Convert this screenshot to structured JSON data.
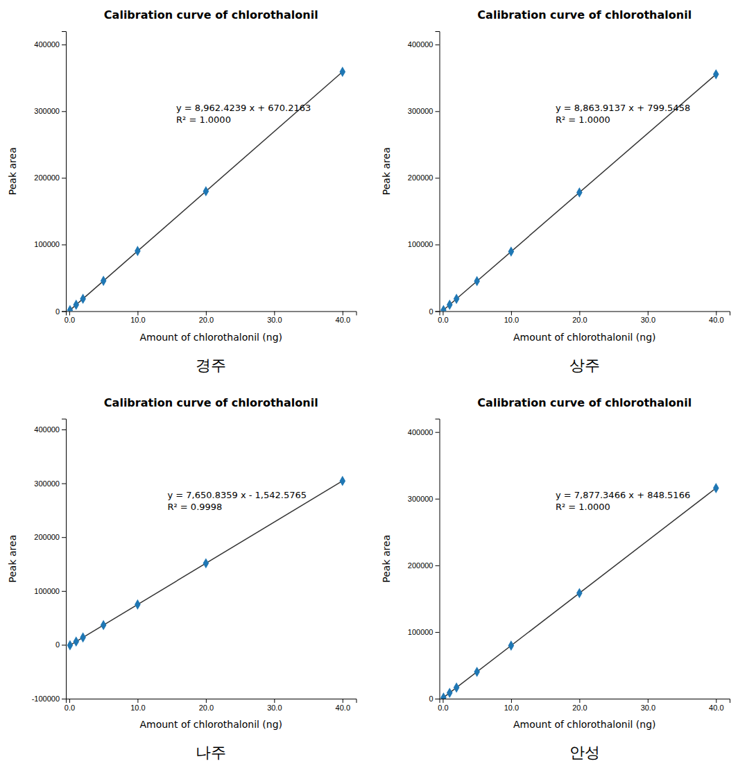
{
  "chart_data": [
    {
      "type": "scatter",
      "title": "Calibration curve of chlorothalonil",
      "subtitle": "경주",
      "xlabel": "Amount of chlorothalonil (ng)",
      "ylabel": "Peak area",
      "annotations": [
        "y = 8,962.4239  x + 670.2163",
        "R² = 1.0000"
      ],
      "xlim": [
        -0.5,
        42
      ],
      "ylim": [
        0,
        420000
      ],
      "xticks": [
        {
          "value": 0.0,
          "label": "0.0"
        },
        {
          "value": 10.0,
          "label": "10.0"
        },
        {
          "value": 20.0,
          "label": "20.0"
        },
        {
          "value": 30.0,
          "label": "30.0"
        },
        {
          "value": 40.0,
          "label": "40.0"
        }
      ],
      "yticks": [
        0,
        100000,
        200000,
        300000,
        400000
      ],
      "grid": false,
      "series": [
        {
          "type": "line",
          "x": [
            0,
            40
          ],
          "values": [
            670.2163,
            359167.1723
          ]
        },
        {
          "type": "scatter",
          "marker": "diamond",
          "x": [
            0.1,
            1.0,
            2.0,
            5.0,
            10.0,
            20.0,
            40.0
          ],
          "values": [
            1566.45869,
            9632.6402,
            18595.0641,
            45482.3358,
            90294.4553,
            179918.6943,
            359167.1723
          ]
        }
      ]
    },
    {
      "type": "scatter",
      "title": "Calibration curve of chlorothalonil",
      "subtitle": "상주",
      "xlabel": "Amount of chlorothalonil (ng)",
      "ylabel": "Peak area",
      "annotations": [
        "y = 8,863.9137  x + 799.5458",
        "R² = 1.0000"
      ],
      "xlim": [
        -0.5,
        42
      ],
      "ylim": [
        0,
        420000
      ],
      "xticks": [
        {
          "value": 0.0,
          "label": "0.0"
        },
        {
          "value": 10.0,
          "label": "10.0"
        },
        {
          "value": 20.0,
          "label": "20.0"
        },
        {
          "value": 30.0,
          "label": "30.0"
        },
        {
          "value": 40.0,
          "label": "40.0"
        }
      ],
      "yticks": [
        0,
        100000,
        200000,
        300000,
        400000
      ],
      "grid": false,
      "series": [
        {
          "type": "line",
          "x": [
            0,
            40
          ],
          "values": [
            799.5458,
            355356.0938
          ]
        },
        {
          "type": "scatter",
          "marker": "diamond",
          "x": [
            0.1,
            1.0,
            2.0,
            5.0,
            10.0,
            20.0,
            40.0
          ],
          "values": [
            1685.93717,
            9663.4595,
            18527.3732,
            45119.1143,
            89438.6828,
            178077.8198,
            355356.0938
          ]
        }
      ]
    },
    {
      "type": "scatter",
      "title": "Calibration curve of chlorothalonil",
      "subtitle": "나주",
      "xlabel": "Amount of chlorothalonil (ng)",
      "ylabel": "Peak area",
      "annotations": [
        "y = 7,650.8359  x - 1,542.5765",
        "R² = 0.9998"
      ],
      "xlim": [
        -0.5,
        42
      ],
      "ylim": [
        -100000,
        420000
      ],
      "xticks": [
        {
          "value": 0.0,
          "label": "0.0"
        },
        {
          "value": 10.0,
          "label": "10.0"
        },
        {
          "value": 20.0,
          "label": "20.0"
        },
        {
          "value": 30.0,
          "label": "30.0"
        },
        {
          "value": 40.0,
          "label": "40.0"
        }
      ],
      "yticks": [
        -100000,
        0,
        100000,
        200000,
        300000,
        400000
      ],
      "grid": false,
      "series": [
        {
          "type": "line",
          "x": [
            0,
            40
          ],
          "values": [
            -1542.5765,
            304490.8595
          ]
        },
        {
          "type": "scatter",
          "marker": "diamond",
          "x": [
            0.1,
            1.0,
            2.0,
            5.0,
            10.0,
            20.0,
            40.0
          ],
          "values": [
            -777.49291,
            6108.2594,
            13759.0953,
            36711.603,
            74965.7825,
            151474.1415,
            304490.8595
          ]
        }
      ]
    },
    {
      "type": "scatter",
      "title": "Calibration curve of chlorothalonil",
      "subtitle": "안성",
      "xlabel": "Amount of chlorothalonil (ng)",
      "ylabel": "Peak area",
      "annotations": [
        "y = 7,877.3466  x + 848.5166",
        "R² = 1.0000"
      ],
      "xlim": [
        -0.5,
        42
      ],
      "ylim": [
        0,
        420000
      ],
      "xticks": [
        {
          "value": 0.0,
          "label": "0.0"
        },
        {
          "value": 10.0,
          "label": "10.0"
        },
        {
          "value": 20.0,
          "label": "20.0"
        },
        {
          "value": 30.0,
          "label": "30.0"
        },
        {
          "value": 40.0,
          "label": "40.0"
        }
      ],
      "yticks": [
        0,
        100000,
        200000,
        300000,
        400000
      ],
      "grid": false,
      "series": [
        {
          "type": "line",
          "x": [
            0,
            40
          ],
          "values": [
            848.5166,
            315942.3806
          ]
        },
        {
          "type": "scatter",
          "marker": "diamond",
          "x": [
            0.1,
            1.0,
            2.0,
            5.0,
            10.0,
            20.0,
            40.0
          ],
          "values": [
            1636.25126,
            8725.8632,
            16603.2098,
            40235.2496,
            79621.9826,
            158395.4486,
            315942.3806
          ]
        }
      ]
    }
  ]
}
